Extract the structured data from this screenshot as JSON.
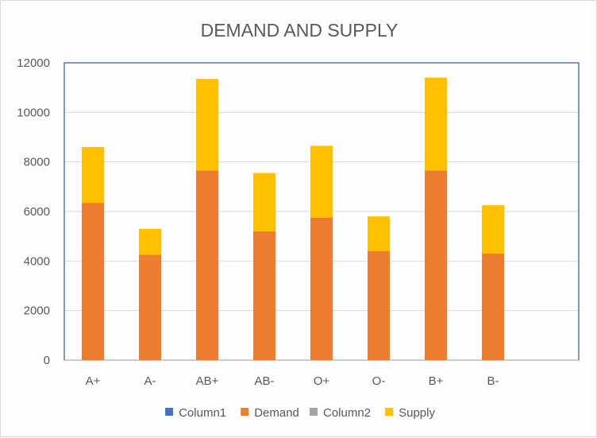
{
  "chart_data": {
    "type": "bar",
    "stacked": true,
    "title": "DEMAND AND SUPPLY",
    "xlabel": "",
    "ylabel": "",
    "categories": [
      "A+",
      "A-",
      "AB+",
      "AB-",
      "O+",
      "O-",
      "B+",
      "B-"
    ],
    "extra_empty_categories": 1,
    "ylim": [
      0,
      12000
    ],
    "yticks": [
      0,
      2000,
      4000,
      6000,
      8000,
      10000,
      12000
    ],
    "grid": true,
    "legend_position": "bottom",
    "series": [
      {
        "name": "Column1",
        "color": "#4472c4",
        "values": [
          0,
          0,
          0,
          0,
          0,
          0,
          0,
          0
        ]
      },
      {
        "name": "Demand",
        "color": "#ed7d31",
        "values": [
          6350,
          4250,
          7650,
          5200,
          5750,
          4400,
          7650,
          4300
        ]
      },
      {
        "name": "Column2",
        "color": "#a5a5a5",
        "values": [
          0,
          0,
          0,
          0,
          0,
          0,
          0,
          0
        ]
      },
      {
        "name": "Supply",
        "color": "#ffc000",
        "values": [
          2250,
          1050,
          3700,
          2350,
          2900,
          1400,
          3750,
          1950
        ]
      }
    ]
  }
}
